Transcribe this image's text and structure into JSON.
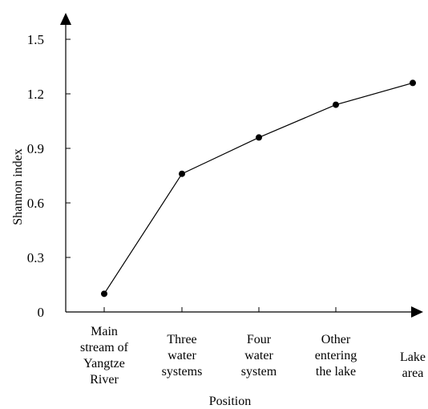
{
  "chart_data": {
    "type": "line",
    "xlabel": "Position",
    "ylabel": "Shannon index",
    "categories": [
      [
        "Main",
        "stream of",
        "Yangtze",
        "River"
      ],
      [
        "Three",
        "water",
        "systems"
      ],
      [
        "Four",
        "water",
        "system"
      ],
      [
        "Other",
        "entering",
        "the lake"
      ],
      [
        "Lake",
        "area"
      ]
    ],
    "values": [
      0.1,
      0.76,
      0.96,
      1.14,
      1.26
    ],
    "yticks": [
      "0",
      "0.3",
      "0.6",
      "0.9",
      "1.2",
      "1.5"
    ],
    "ytick_values": [
      0,
      0.3,
      0.6,
      0.9,
      1.2,
      1.5
    ],
    "ylim": [
      0,
      1.5
    ],
    "grid": false,
    "legend": "none",
    "colors": {
      "line": "#000000",
      "marker": "#000000"
    }
  }
}
